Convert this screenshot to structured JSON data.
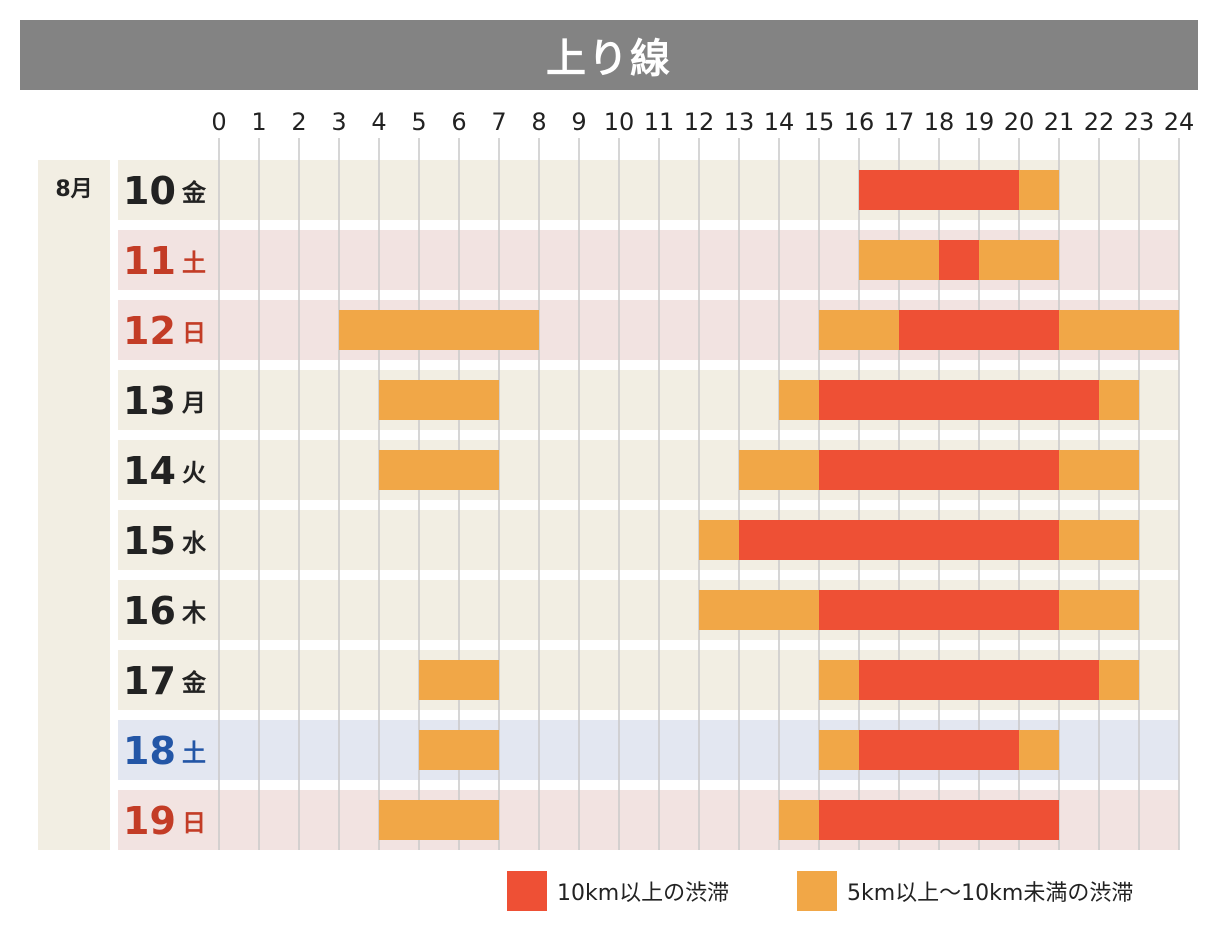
{
  "title": "上り線",
  "month_label": "8月",
  "colors": {
    "heavy": "#ee5035",
    "moderate": "#f1a747",
    "row_default": "#f2eee3",
    "row_saturday": "#e3e7f1",
    "row_holiday": "#f2e3e1",
    "text_default": "#222222",
    "text_saturday": "#2356a6",
    "text_holiday": "#c33c26",
    "month_bg": "#f2eee3",
    "grid": "#c9c9c9"
  },
  "legend": [
    {
      "label": "10km以上の渋滞",
      "color_key": "heavy"
    },
    {
      "label": "5km以上〜10km未満の渋滞",
      "color_key": "moderate"
    }
  ],
  "chart_data": {
    "type": "gantt",
    "x": {
      "min": 0,
      "max": 24,
      "ticks": [
        "0",
        "1",
        "2",
        "3",
        "4",
        "5",
        "6",
        "7",
        "8",
        "9",
        "10",
        "11",
        "12",
        "13",
        "14",
        "15",
        "16",
        "17",
        "18",
        "19",
        "20",
        "21",
        "22",
        "23",
        "24"
      ]
    },
    "rows": [
      {
        "day": "10",
        "weekday": "金",
        "kind": "default",
        "segments": [
          {
            "start": 16,
            "end": 20,
            "level": "heavy"
          },
          {
            "start": 20,
            "end": 21,
            "level": "moderate"
          }
        ]
      },
      {
        "day": "11",
        "weekday": "土",
        "kind": "holiday",
        "segments": [
          {
            "start": 16,
            "end": 18,
            "level": "moderate"
          },
          {
            "start": 18,
            "end": 19,
            "level": "heavy"
          },
          {
            "start": 19,
            "end": 21,
            "level": "moderate"
          }
        ]
      },
      {
        "day": "12",
        "weekday": "日",
        "kind": "holiday",
        "segments": [
          {
            "start": 3,
            "end": 8,
            "level": "moderate"
          },
          {
            "start": 15,
            "end": 17,
            "level": "moderate"
          },
          {
            "start": 17,
            "end": 21,
            "level": "heavy"
          },
          {
            "start": 21,
            "end": 24,
            "level": "moderate"
          }
        ]
      },
      {
        "day": "13",
        "weekday": "月",
        "kind": "default",
        "segments": [
          {
            "start": 4,
            "end": 7,
            "level": "moderate"
          },
          {
            "start": 14,
            "end": 15,
            "level": "moderate"
          },
          {
            "start": 15,
            "end": 22,
            "level": "heavy"
          },
          {
            "start": 22,
            "end": 23,
            "level": "moderate"
          }
        ]
      },
      {
        "day": "14",
        "weekday": "火",
        "kind": "default",
        "segments": [
          {
            "start": 4,
            "end": 7,
            "level": "moderate"
          },
          {
            "start": 13,
            "end": 15,
            "level": "moderate"
          },
          {
            "start": 15,
            "end": 21,
            "level": "heavy"
          },
          {
            "start": 21,
            "end": 23,
            "level": "moderate"
          }
        ]
      },
      {
        "day": "15",
        "weekday": "水",
        "kind": "default",
        "segments": [
          {
            "start": 12,
            "end": 13,
            "level": "moderate"
          },
          {
            "start": 13,
            "end": 21,
            "level": "heavy"
          },
          {
            "start": 21,
            "end": 23,
            "level": "moderate"
          }
        ]
      },
      {
        "day": "16",
        "weekday": "木",
        "kind": "default",
        "segments": [
          {
            "start": 12,
            "end": 15,
            "level": "moderate"
          },
          {
            "start": 15,
            "end": 21,
            "level": "heavy"
          },
          {
            "start": 21,
            "end": 23,
            "level": "moderate"
          }
        ]
      },
      {
        "day": "17",
        "weekday": "金",
        "kind": "default",
        "segments": [
          {
            "start": 5,
            "end": 7,
            "level": "moderate"
          },
          {
            "start": 15,
            "end": 16,
            "level": "moderate"
          },
          {
            "start": 16,
            "end": 22,
            "level": "heavy"
          },
          {
            "start": 22,
            "end": 23,
            "level": "moderate"
          }
        ]
      },
      {
        "day": "18",
        "weekday": "土",
        "kind": "saturday",
        "segments": [
          {
            "start": 5,
            "end": 7,
            "level": "moderate"
          },
          {
            "start": 15,
            "end": 16,
            "level": "moderate"
          },
          {
            "start": 16,
            "end": 20,
            "level": "heavy"
          },
          {
            "start": 20,
            "end": 21,
            "level": "moderate"
          }
        ]
      },
      {
        "day": "19",
        "weekday": "日",
        "kind": "holiday",
        "segments": [
          {
            "start": 4,
            "end": 7,
            "level": "moderate"
          },
          {
            "start": 14,
            "end": 15,
            "level": "moderate"
          },
          {
            "start": 15,
            "end": 21,
            "level": "heavy"
          }
        ]
      }
    ]
  }
}
